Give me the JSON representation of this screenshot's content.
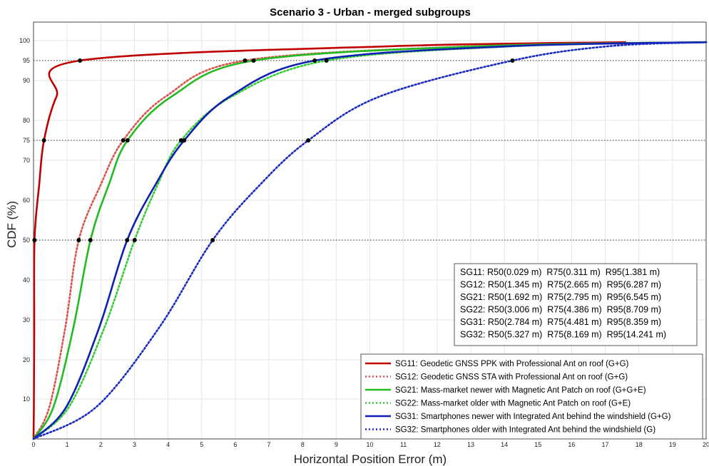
{
  "chart_data": {
    "type": "line",
    "title": "Scenario 3 - Urban - merged subgroups",
    "xlabel": "Horizontal Position Error (m)",
    "ylabel": "CDF (%)",
    "xlim": [
      0,
      20
    ],
    "ylim": [
      0,
      105
    ],
    "x_ticks": [
      0,
      1,
      2,
      3,
      4,
      5,
      6,
      7,
      8,
      9,
      10,
      11,
      12,
      13,
      14,
      15,
      16,
      17,
      18,
      19,
      20
    ],
    "y_ticks": [
      10,
      20,
      30,
      40,
      50,
      60,
      70,
      75,
      80,
      90,
      95,
      100
    ],
    "y_scale": "normal-probability",
    "grid": true,
    "reference_levels": [
      50,
      75,
      95
    ],
    "legend_position": "bottom-right",
    "series": [
      {
        "name": "SG11: Geodetic GNSS PPK with Professional Ant on roof (G+G)",
        "color": "#c00000",
        "style": "solid",
        "r50": 0.029,
        "r75": 0.311,
        "r95": 1.381,
        "x_end": 17.6
      },
      {
        "name": "SG12: Geodetic GNSS STA with Professional Ant on roof (G+G)",
        "color": "#d9534f",
        "style": "dotted",
        "r50": 1.345,
        "r75": 2.665,
        "r95": 6.287,
        "x_end": 20
      },
      {
        "name": "SG21: Mass-market newer with Magnetic Ant Patch on roof (G+G+E)",
        "color": "#22bb22",
        "style": "solid",
        "r50": 1.692,
        "r75": 2.795,
        "r95": 6.545,
        "x_end": 20
      },
      {
        "name": "SG22: Mass-market older with Magnetic Ant Patch on roof (G+E)",
        "color": "#33cc33",
        "style": "dotted",
        "r50": 3.006,
        "r75": 4.386,
        "r95": 8.709,
        "x_end": 20
      },
      {
        "name": "SG31: Smartphones newer with Integrated Ant behind the windshield (G+G)",
        "color": "#1020b0",
        "style": "solid",
        "r50": 2.784,
        "r75": 4.481,
        "r95": 8.359,
        "x_end": 20
      },
      {
        "name": "SG32: Smartphones older with Integrated Ant behind the windshield (G)",
        "color": "#1a2bc0",
        "style": "dotted",
        "r50": 5.327,
        "r75": 8.169,
        "r95": 14.241,
        "x_end": 20
      }
    ],
    "stats_box": [
      "SG11: R50(0.029 m)  R75(0.311 m)  R95(1.381 m)",
      "SG12: R50(1.345 m)  R75(2.665 m)  R95(6.287 m)",
      "SG21: R50(1.692 m)  R75(2.795 m)  R95(6.545 m)",
      "SG22: R50(3.006 m)  R75(4.386 m)  R95(8.709 m)",
      "SG31: R50(2.784 m)  R75(4.481 m)  R95(8.359 m)",
      "SG32: R50(5.327 m)  R75(8.169 m)  R95(14.241 m)"
    ]
  }
}
